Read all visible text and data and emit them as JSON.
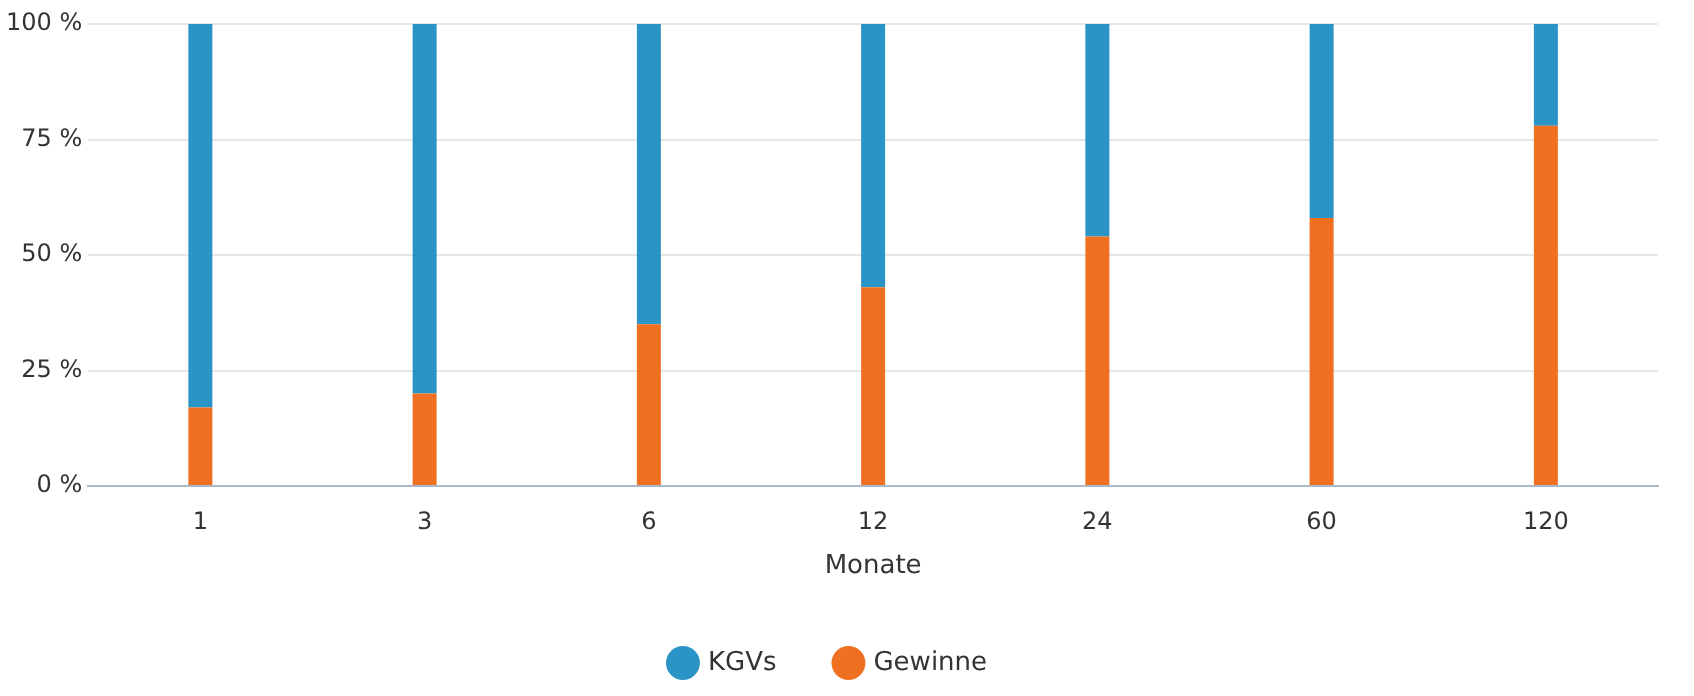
{
  "chart_data": {
    "type": "bar",
    "stacked": true,
    "xlabel": "Monate",
    "categories": [
      "1",
      "3",
      "6",
      "12",
      "24",
      "60",
      "120"
    ],
    "series": [
      {
        "name": "Gewinne",
        "color": "#f07022",
        "values": [
          17,
          20,
          35,
          43,
          54,
          58,
          78
        ]
      },
      {
        "name": "KGVs",
        "color": "#2a94c6",
        "values": [
          83,
          80,
          65,
          57,
          46,
          42,
          22
        ]
      }
    ],
    "ylim": [
      0,
      100
    ],
    "yticks": [
      {
        "value": 0,
        "label": "0 %"
      },
      {
        "value": 25,
        "label": "25 %"
      },
      {
        "value": 50,
        "label": "50 %"
      },
      {
        "value": 75,
        "label": "75 %"
      },
      {
        "value": 100,
        "label": "100 %"
      }
    ],
    "grid": "y",
    "legend": "bottom"
  }
}
